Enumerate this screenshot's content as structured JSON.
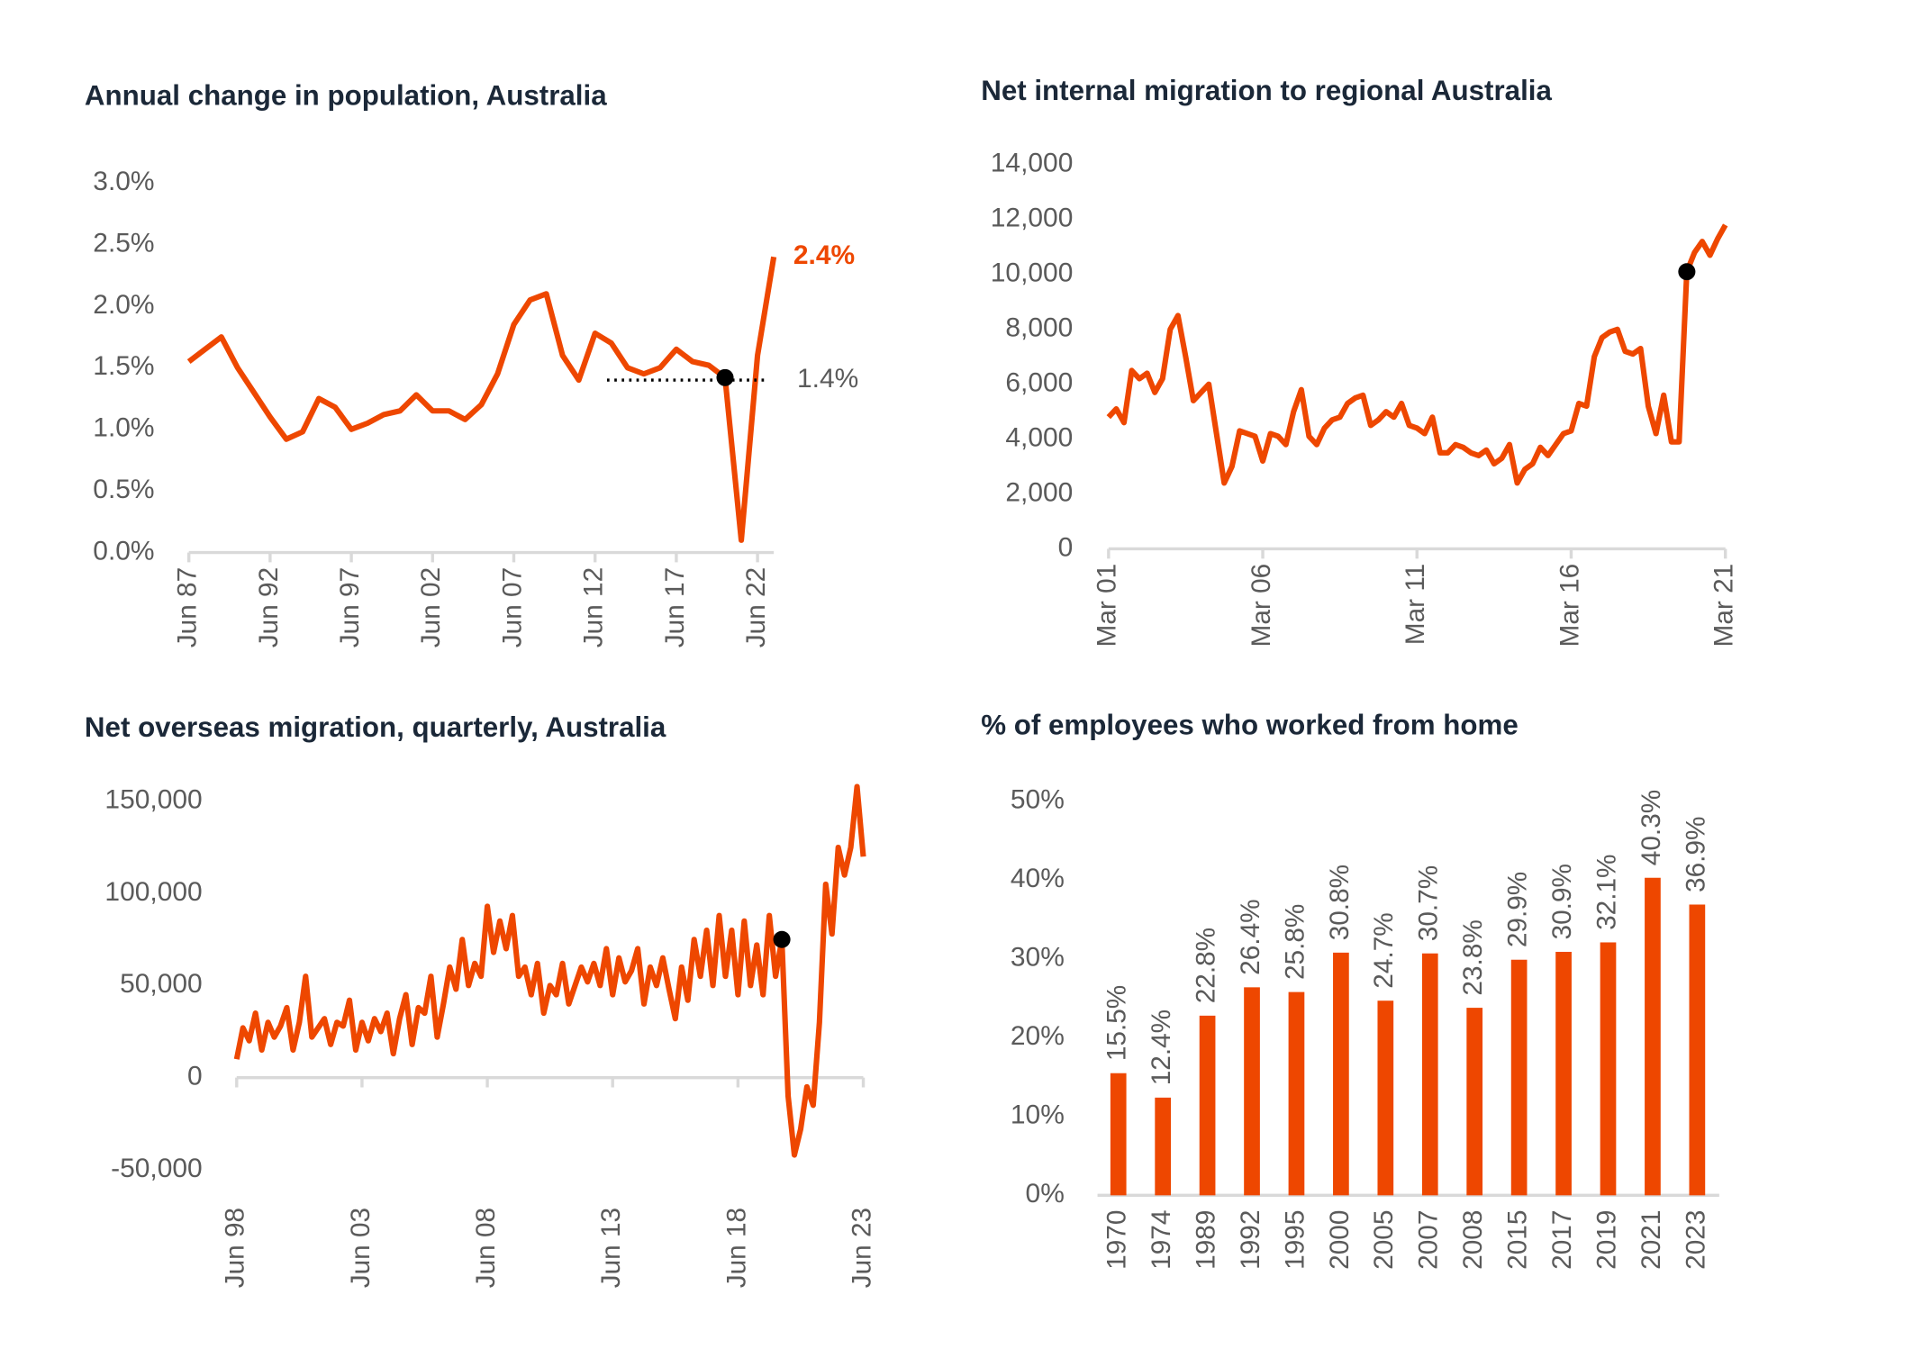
{
  "chart_data": [
    {
      "type": "line",
      "title": "Annual change in population, Australia",
      "color": "#ee4700",
      "categories": [
        "Jun 87",
        null,
        null,
        null,
        null,
        "Jun 92",
        null,
        null,
        null,
        null,
        "Jun 97",
        null,
        null,
        null,
        null,
        "Jun 02",
        null,
        null,
        null,
        null,
        "Jun 07",
        null,
        null,
        null,
        null,
        "Jun 12",
        null,
        null,
        null,
        null,
        "Jun 17",
        null,
        null,
        null,
        null,
        "Jun 22",
        null
      ],
      "values": [
        1.55,
        1.65,
        1.75,
        1.5,
        1.3,
        1.1,
        0.92,
        0.98,
        1.25,
        1.18,
        1.0,
        1.05,
        1.12,
        1.15,
        1.28,
        1.15,
        1.15,
        1.08,
        1.2,
        1.45,
        1.85,
        2.05,
        2.1,
        1.6,
        1.4,
        1.78,
        1.7,
        1.5,
        1.45,
        1.5,
        1.65,
        1.55,
        1.52,
        1.42,
        0.1,
        1.6,
        2.4
      ],
      "ylim": [
        0,
        3
      ],
      "yticks": [
        {
          "value": 0,
          "label": "0.0%"
        },
        {
          "value": 0.5,
          "label": "0.5%"
        },
        {
          "value": 1,
          "label": "1.0%"
        },
        {
          "value": 1.5,
          "label": "1.5%"
        },
        {
          "value": 2,
          "label": "2.0%"
        },
        {
          "value": 2.5,
          "label": "2.5%"
        },
        {
          "value": 3,
          "label": "3.0%"
        }
      ],
      "highlight_index": 33,
      "end_label": {
        "value": 2.4,
        "label": "2.4%"
      },
      "reference_line": {
        "value": 1.4,
        "label": "1.4%"
      }
    },
    {
      "type": "line",
      "title": "Net internal migration to regional Australia",
      "color": "#ee4700",
      "categories": [
        "Mar 01",
        null,
        null,
        null,
        null,
        null,
        null,
        null,
        null,
        null,
        null,
        null,
        null,
        null,
        null,
        null,
        null,
        null,
        null,
        null,
        "Mar 06",
        null,
        null,
        null,
        null,
        null,
        null,
        null,
        null,
        null,
        null,
        null,
        null,
        null,
        null,
        null,
        null,
        null,
        null,
        null,
        "Mar 11",
        null,
        null,
        null,
        null,
        null,
        null,
        null,
        null,
        null,
        null,
        null,
        null,
        null,
        null,
        null,
        null,
        null,
        null,
        null,
        "Mar 16",
        null,
        null,
        null,
        null,
        null,
        null,
        null,
        null,
        null,
        null,
        null,
        null,
        null,
        null,
        null,
        null,
        null,
        null,
        null,
        "Mar 21"
      ],
      "values": [
        4800,
        5100,
        4600,
        6500,
        6200,
        6400,
        5700,
        6200,
        8000,
        8500,
        7000,
        5400,
        5700,
        6000,
        4200,
        2400,
        3000,
        4300,
        4200,
        4100,
        3200,
        4200,
        4100,
        3800,
        5000,
        5800,
        4100,
        3800,
        4400,
        4700,
        4800,
        5300,
        5500,
        5600,
        4500,
        4700,
        5000,
        4800,
        5300,
        4500,
        4400,
        4200,
        4800,
        3500,
        3500,
        3800,
        3700,
        3500,
        3400,
        3600,
        3100,
        3300,
        3800,
        2400,
        2900,
        3100,
        3700,
        3400,
        3800,
        4200,
        4300,
        5300,
        5200,
        7000,
        7700,
        7900,
        8000,
        7200,
        7100,
        7300,
        5200,
        4200,
        5600,
        3900,
        3900,
        10100,
        10800,
        11200,
        10700,
        11300,
        11800
      ],
      "ylim": [
        0,
        14000
      ],
      "yticks": [
        0,
        {
          "value": 2000,
          "label": "2,000"
        },
        {
          "value": 4000,
          "label": "4,000"
        },
        {
          "value": 6000,
          "label": "6,000"
        },
        {
          "value": 8000,
          "label": "8,000"
        },
        {
          "value": 10000,
          "label": "10,000"
        },
        {
          "value": 12000,
          "label": "12,000"
        },
        {
          "value": 14000,
          "label": "14,000"
        }
      ],
      "highlight_index": 75
    },
    {
      "type": "line",
      "title": "Net overseas migration, quarterly, Australia",
      "color": "#ee4700",
      "categories": [
        "Jun 98",
        null,
        null,
        null,
        null,
        null,
        null,
        null,
        null,
        null,
        null,
        null,
        null,
        null,
        null,
        null,
        null,
        null,
        null,
        null,
        "Jun 03",
        null,
        null,
        null,
        null,
        null,
        null,
        null,
        null,
        null,
        null,
        null,
        null,
        null,
        null,
        null,
        null,
        null,
        null,
        null,
        "Jun 08",
        null,
        null,
        null,
        null,
        null,
        null,
        null,
        null,
        null,
        null,
        null,
        null,
        null,
        null,
        null,
        null,
        null,
        null,
        null,
        "Jun 13",
        null,
        null,
        null,
        null,
        null,
        null,
        null,
        null,
        null,
        null,
        null,
        null,
        null,
        null,
        null,
        null,
        null,
        null,
        null,
        "Jun 18",
        null,
        null,
        null,
        null,
        null,
        null,
        null,
        null,
        null,
        null,
        null,
        null,
        null,
        null,
        null,
        null,
        null,
        null,
        null,
        "Jun 23"
      ],
      "values": [
        10000,
        27000,
        20000,
        35000,
        15000,
        30000,
        22000,
        28000,
        38000,
        15000,
        30000,
        55000,
        22000,
        27000,
        32000,
        18000,
        30000,
        28000,
        42000,
        15000,
        30000,
        20000,
        32000,
        25000,
        35000,
        13000,
        32000,
        45000,
        18000,
        38000,
        35000,
        55000,
        22000,
        40000,
        60000,
        48000,
        75000,
        50000,
        62000,
        55000,
        93000,
        68000,
        85000,
        70000,
        88000,
        55000,
        60000,
        45000,
        62000,
        35000,
        50000,
        45000,
        62000,
        40000,
        50000,
        60000,
        52000,
        62000,
        50000,
        70000,
        45000,
        65000,
        52000,
        58000,
        70000,
        40000,
        60000,
        50000,
        65000,
        48000,
        32000,
        60000,
        42000,
        75000,
        55000,
        80000,
        50000,
        88000,
        55000,
        80000,
        45000,
        85000,
        50000,
        72000,
        45000,
        88000,
        55000,
        75000,
        -10000,
        -42000,
        -28000,
        -5000,
        -15000,
        30000,
        105000,
        78000,
        125000,
        110000,
        125000,
        158000,
        120000
      ],
      "ylim": [
        -50000,
        150000
      ],
      "yticks": [
        {
          "value": -50000,
          "label": "-50,000"
        },
        0,
        {
          "value": 50000,
          "label": "50,000"
        },
        {
          "value": 100000,
          "label": "100,000"
        },
        {
          "value": 150000,
          "label": "150,000"
        }
      ],
      "highlight_index": 87
    },
    {
      "type": "bar",
      "title": "% of employees who worked from home",
      "color": "#ee4700",
      "categories": [
        "1970",
        "1974",
        "1989",
        "1992",
        "1995",
        "2000",
        "2005",
        "2007",
        "2008",
        "2015",
        "2017",
        "2019",
        "2021",
        "2023"
      ],
      "values": [
        15.5,
        12.4,
        22.8,
        26.4,
        25.8,
        30.8,
        24.7,
        30.7,
        23.8,
        29.9,
        30.9,
        32.1,
        40.3,
        36.9
      ],
      "value_labels": [
        "15.5%",
        "12.4%",
        "22.8%",
        "26.4%",
        "25.8%",
        "30.8%",
        "24.7%",
        "30.7%",
        "23.8%",
        "29.9%",
        "30.9%",
        "32.1%",
        "40.3%",
        "36.9%"
      ],
      "ylim": [
        0,
        50
      ],
      "yticks": [
        {
          "value": 0,
          "label": "0%"
        },
        {
          "value": 10,
          "label": "10%"
        },
        {
          "value": 20,
          "label": "20%"
        },
        {
          "value": 30,
          "label": "30%"
        },
        {
          "value": 40,
          "label": "40%"
        },
        {
          "value": 50,
          "label": "50%"
        }
      ]
    }
  ]
}
